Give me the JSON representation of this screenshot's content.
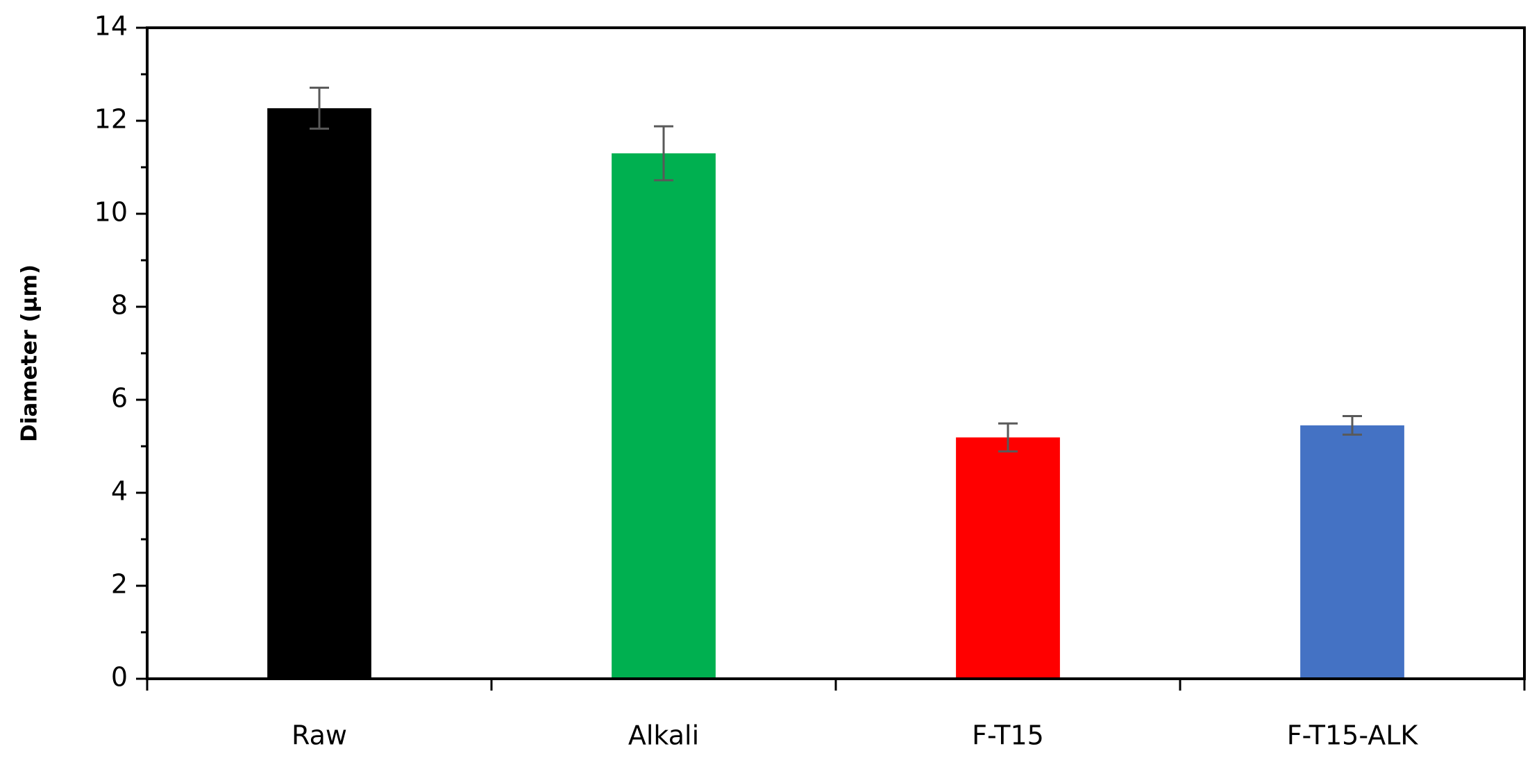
{
  "chart_data": {
    "type": "bar",
    "y_label": "Diameter (µm)",
    "categories": [
      "Raw",
      "Alkali",
      "F-T15",
      "F-T15-ALK"
    ],
    "values": [
      12.27,
      11.3,
      5.19,
      5.45
    ],
    "errors": [
      0.44,
      0.58,
      0.3,
      0.2
    ],
    "colors": [
      "#000000",
      "#00b050",
      "#ff0000",
      "#4472c4"
    ],
    "ylim": [
      0,
      14
    ],
    "yticks": [
      0,
      2,
      4,
      6,
      8,
      10,
      12,
      14
    ],
    "minor_yticks": [
      1,
      3,
      5,
      7,
      9,
      11,
      13
    ],
    "grid": false
  }
}
